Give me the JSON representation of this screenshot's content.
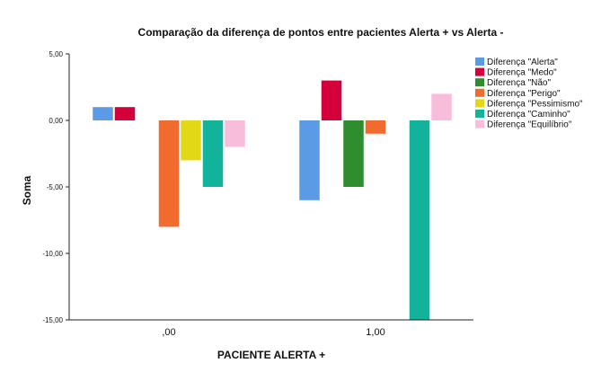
{
  "chart_data": {
    "type": "bar",
    "title": "Comparação da diferença de pontos entre pacientes Alerta + vs Alerta -",
    "xlabel": "PACIENTE ALERTA +",
    "ylabel": "Soma",
    "categories": [
      ",00",
      "1,00"
    ],
    "ylim": [
      -15,
      5
    ],
    "yticks": [
      "5,00",
      "0,00",
      "-5,00",
      "-10,00",
      "-15,00"
    ],
    "ytick_values": [
      5,
      0,
      -5,
      -10,
      -15
    ],
    "legend_position": "right",
    "series": [
      {
        "name": "Diferença \"Alerta\"",
        "color": "#5b9be6",
        "values": [
          1,
          -6
        ]
      },
      {
        "name": "Diferença \"Medo\"",
        "color": "#d4003c",
        "values": [
          1,
          3
        ]
      },
      {
        "name": "Diferença \"Não\"",
        "color": "#2f8c2f",
        "values": [
          0,
          -5
        ]
      },
      {
        "name": "Diferença \"Perigo\"",
        "color": "#f26b2e",
        "values": [
          -8,
          -1
        ]
      },
      {
        "name": "Diferença \"Pessimismo\"",
        "color": "#e3d816",
        "values": [
          -3,
          0
        ]
      },
      {
        "name": "Diferença \"Caminho\"",
        "color": "#13b39b",
        "values": [
          -5,
          -15
        ]
      },
      {
        "name": "Diferença \"Equilíbrio\"",
        "color": "#f9bddc",
        "values": [
          -2,
          2
        ]
      }
    ]
  }
}
